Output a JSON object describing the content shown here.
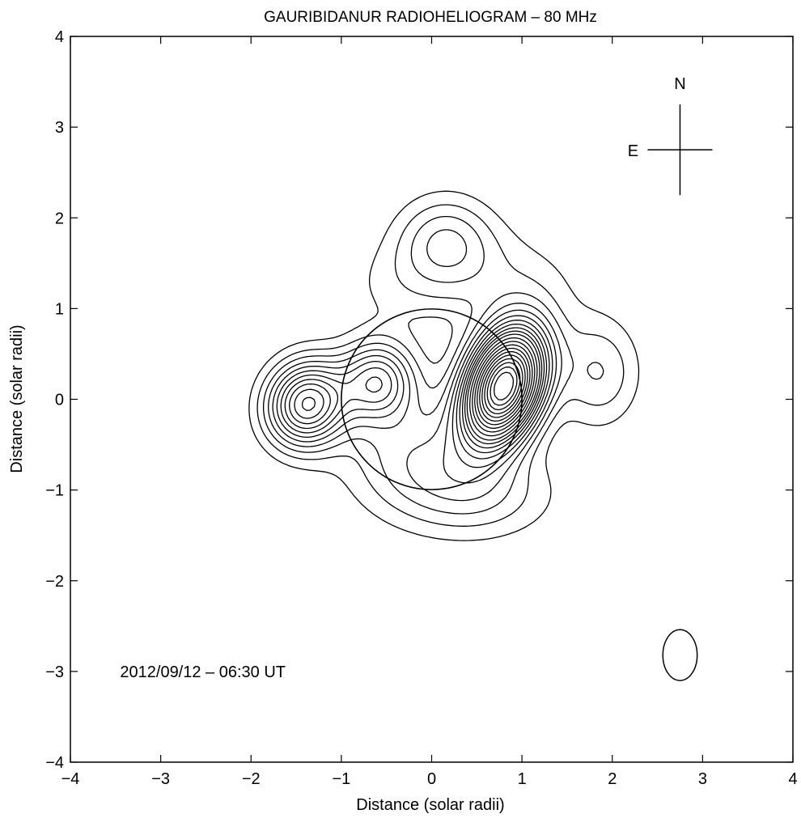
{
  "chart_data": {
    "type": "contour",
    "title": "GAURIBIDANUR RADIOHELIOGRAM – 80 MHz",
    "xlabel": "Distance (solar radii)",
    "ylabel": "Distance (solar radii)",
    "xlim": [
      -4,
      4
    ],
    "ylim": [
      -4,
      4
    ],
    "x_ticks": [
      -4,
      -3,
      -2,
      -1,
      0,
      1,
      2,
      3,
      4
    ],
    "y_ticks": [
      -4,
      -3,
      -2,
      -1,
      0,
      1,
      2,
      3,
      4
    ],
    "x_tick_labels": [
      "−4",
      "−3",
      "−2",
      "−1",
      "0",
      "1",
      "2",
      "3",
      "4"
    ],
    "y_tick_labels": [
      "−4",
      "−3",
      "−2",
      "−1",
      "0",
      "1",
      "2",
      "3",
      "4"
    ],
    "grid": false,
    "annotation": "2012/09/12 – 06:30 UT",
    "compass": {
      "north_label": "N",
      "east_label": "E",
      "center": [
        2.75,
        2.75
      ]
    },
    "solar_disk": {
      "center": [
        0,
        0
      ],
      "radius": 1.0
    },
    "beam": {
      "center": [
        2.75,
        -2.82
      ],
      "semi_axis_x": 0.19,
      "semi_axis_y": 0.28
    },
    "sources": [
      {
        "x": 0.8,
        "y": 0.15,
        "amplitude": 1.0,
        "sigma_x": 0.28,
        "sigma_y": 0.45,
        "rotation_deg": -20
      },
      {
        "x": -1.38,
        "y": -0.05,
        "amplitude": 0.45,
        "sigma_x": 0.3,
        "sigma_y": 0.33,
        "rotation_deg": -25
      },
      {
        "x": -0.6,
        "y": 0.2,
        "amplitude": 0.3,
        "sigma_x": 0.28,
        "sigma_y": 0.3,
        "rotation_deg": 0
      },
      {
        "x": 0.15,
        "y": 1.75,
        "amplitude": 0.16,
        "sigma_x": 0.38,
        "sigma_y": 0.35,
        "rotation_deg": 0
      },
      {
        "x": 1.85,
        "y": 0.3,
        "amplitude": 0.13,
        "sigma_x": 0.32,
        "sigma_y": 0.42,
        "rotation_deg": 0
      },
      {
        "x": -0.2,
        "y": -0.6,
        "amplitude": 0.14,
        "sigma_x": 0.55,
        "sigma_y": 0.45,
        "rotation_deg": 0
      },
      {
        "x": 0.5,
        "y": -1.05,
        "amplitude": 0.12,
        "sigma_x": 0.6,
        "sigma_y": 0.35,
        "rotation_deg": 0
      },
      {
        "x": 0.8,
        "y": 1.3,
        "amplitude": 0.07,
        "sigma_x": 0.6,
        "sigma_y": 0.4,
        "rotation_deg": 0
      },
      {
        "x": -0.4,
        "y": 1.25,
        "amplitude": 0.05,
        "sigma_x": 0.45,
        "sigma_y": 0.35,
        "rotation_deg": 0
      }
    ],
    "contour_levels": [
      0.05,
      0.09,
      0.13,
      0.17,
      0.21,
      0.25,
      0.29,
      0.33,
      0.37,
      0.41,
      0.45,
      0.5,
      0.55,
      0.6,
      0.65,
      0.7,
      0.75,
      0.8,
      0.85,
      0.9,
      0.95
    ]
  }
}
